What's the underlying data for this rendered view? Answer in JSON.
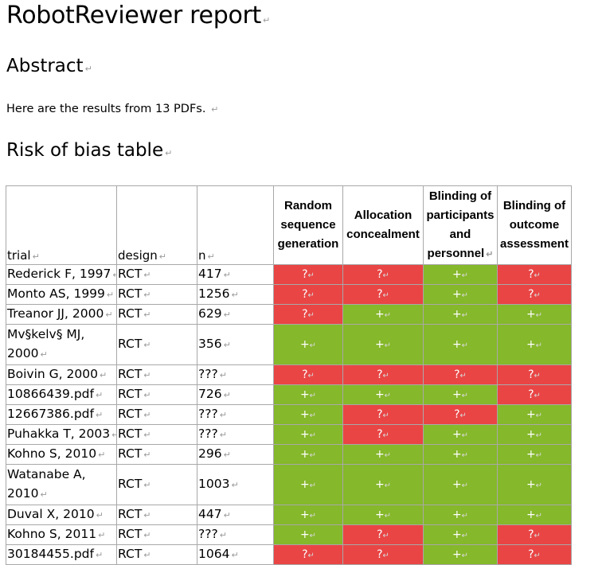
{
  "title": "RobotReviewer report",
  "abstract_heading": "Abstract",
  "summary": "Here are the results from 13 PDFs.",
  "rob_heading": "Risk of bias table",
  "table": {
    "headers": {
      "trial": "trial",
      "design": "design",
      "n": "n",
      "random": "Random sequence generation",
      "allocation": "Allocation concealment",
      "blinding_participants": "Blinding of participants and personnel",
      "blinding_outcome": "Blinding of outcome assessment"
    },
    "rows": [
      {
        "trial": "Rederick F, 1997",
        "design": "RCT",
        "n": "417",
        "random": "?",
        "allocation": "?",
        "blinding_participants": "+",
        "blinding_outcome": "?"
      },
      {
        "trial": "Monto AS, 1999",
        "design": "RCT",
        "n": "1256",
        "random": "?",
        "allocation": "?",
        "blinding_participants": "+",
        "blinding_outcome": "?"
      },
      {
        "trial": "Treanor JJ, 2000",
        "design": "RCT",
        "n": "629",
        "random": "?",
        "allocation": "+",
        "blinding_participants": "+",
        "blinding_outcome": "+"
      },
      {
        "trial": "Mv§kelv§ MJ, 2000",
        "design": "RCT",
        "n": "356",
        "random": "+",
        "allocation": "+",
        "blinding_participants": "+",
        "blinding_outcome": "+"
      },
      {
        "trial": "Boivin G, 2000",
        "design": "RCT",
        "n": "???",
        "random": "?",
        "allocation": "?",
        "blinding_participants": "?",
        "blinding_outcome": "?"
      },
      {
        "trial": "10866439.pdf",
        "design": "RCT",
        "n": "726",
        "random": "+",
        "allocation": "+",
        "blinding_participants": "+",
        "blinding_outcome": "?"
      },
      {
        "trial": "12667386.pdf",
        "design": "RCT",
        "n": "???",
        "random": "+",
        "allocation": "?",
        "blinding_participants": "?",
        "blinding_outcome": "+"
      },
      {
        "trial": "Puhakka T, 2003",
        "design": "RCT",
        "n": "???",
        "random": "+",
        "allocation": "?",
        "blinding_participants": "+",
        "blinding_outcome": "+"
      },
      {
        "trial": "Kohno S, 2010",
        "design": "RCT",
        "n": "296",
        "random": "+",
        "allocation": "+",
        "blinding_participants": "+",
        "blinding_outcome": "+"
      },
      {
        "trial": "Watanabe A, 2010",
        "design": "RCT",
        "n": "1003",
        "random": "+",
        "allocation": "+",
        "blinding_participants": "+",
        "blinding_outcome": "+"
      },
      {
        "trial": "Duval X, 2010",
        "design": "RCT",
        "n": "447",
        "random": "+",
        "allocation": "+",
        "blinding_participants": "+",
        "blinding_outcome": "+"
      },
      {
        "trial": "Kohno S, 2011",
        "design": "RCT",
        "n": "???",
        "random": "+",
        "allocation": "?",
        "blinding_participants": "+",
        "blinding_outcome": "?"
      },
      {
        "trial": "30184455.pdf",
        "design": "RCT",
        "n": "1064",
        "random": "?",
        "allocation": "?",
        "blinding_participants": "+",
        "blinding_outcome": "?"
      }
    ]
  },
  "colors": {
    "low_risk": "#85b82a",
    "high_unclear_risk": "#e94545"
  }
}
